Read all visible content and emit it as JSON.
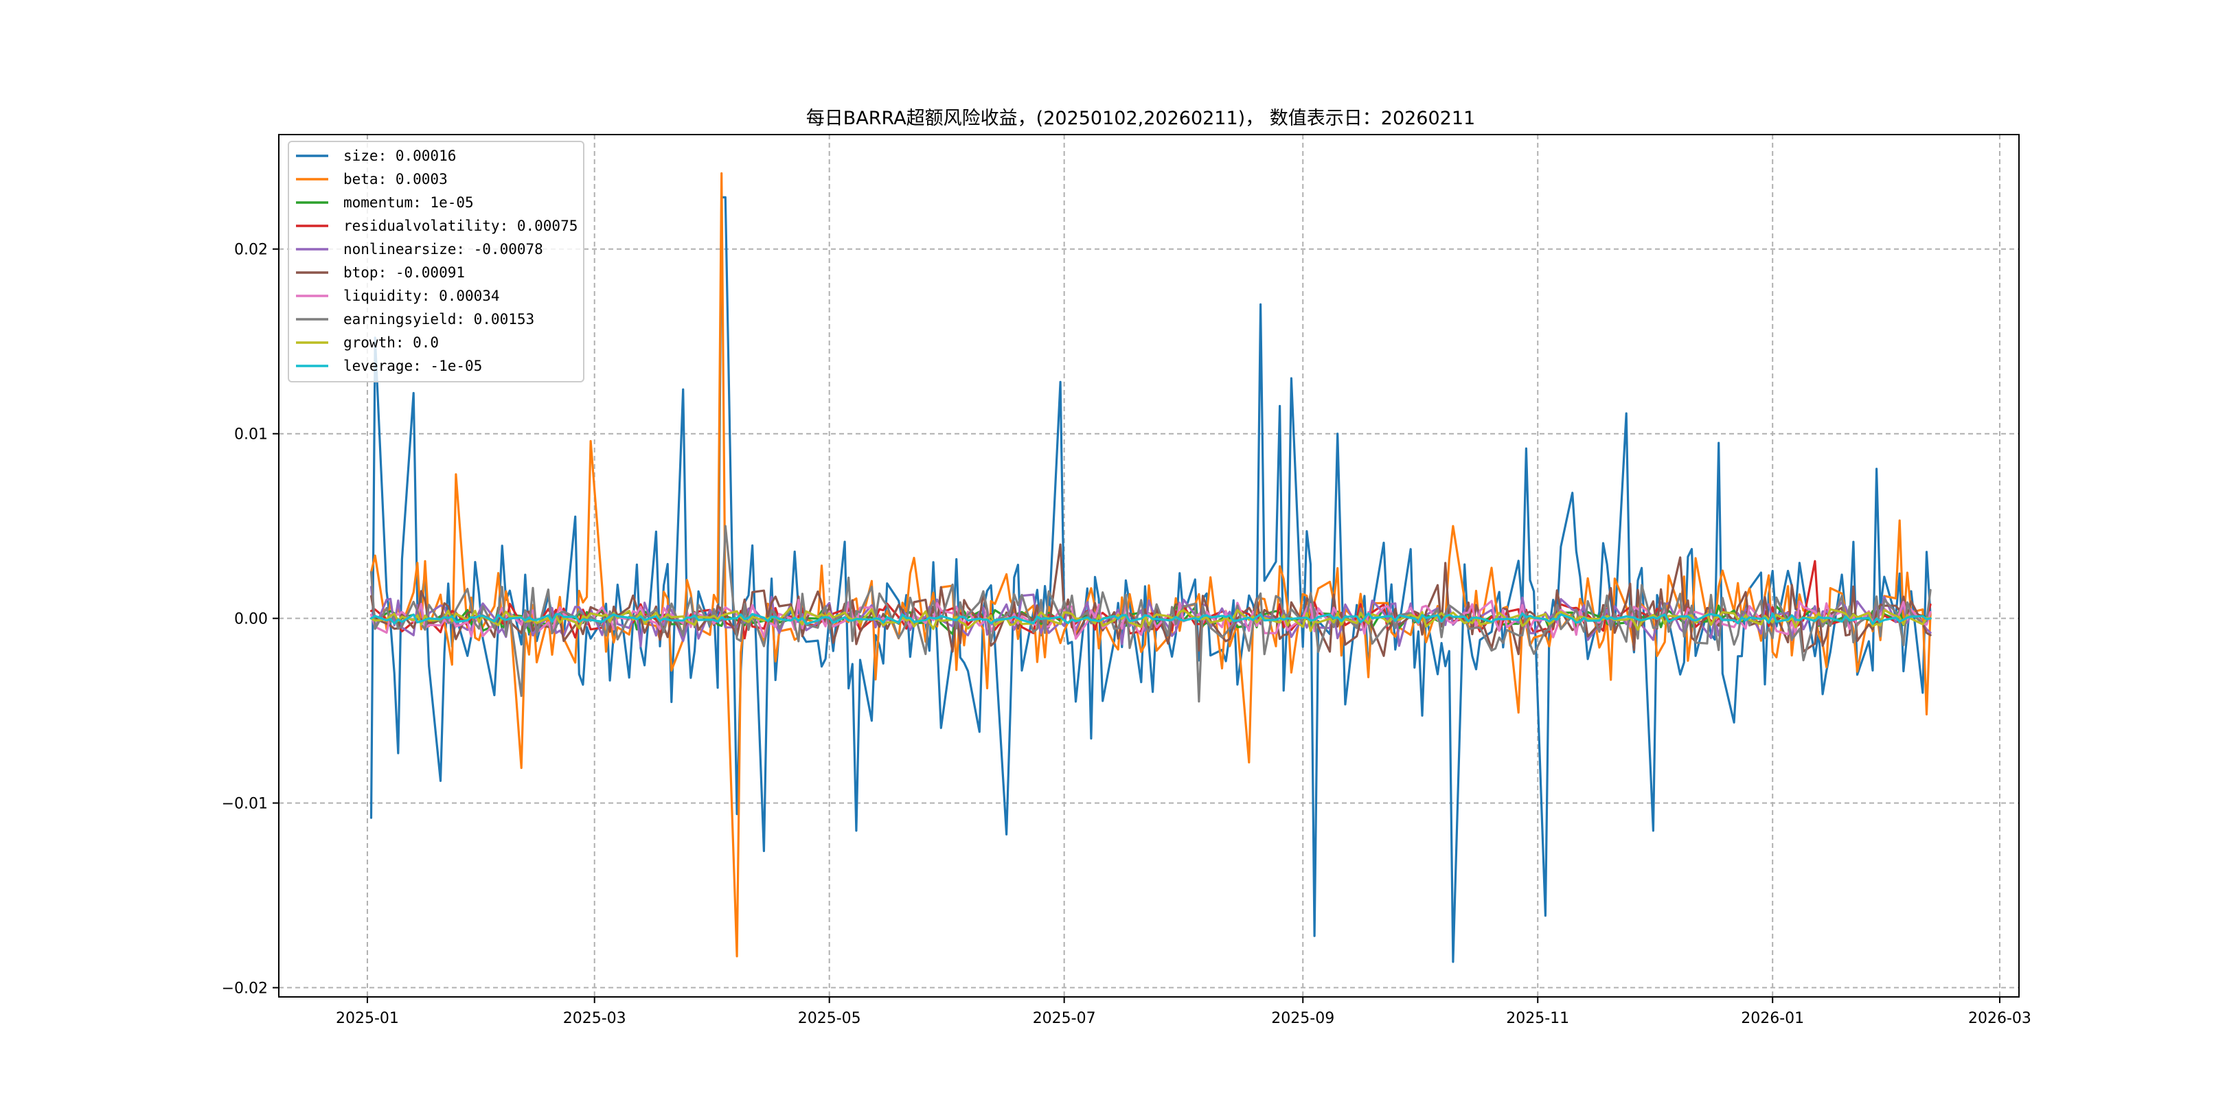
{
  "chart_data": {
    "type": "line",
    "title": "每日BARRA超额风险收益，(20250102,20260211)， 数值表示日：20260211",
    "xlabel": "",
    "ylabel": "",
    "x_start": "2025-01-02",
    "x_end": "2026-02-11",
    "xlim": [
      "2024-12-09",
      "2026-03-06"
    ],
    "ylim": [
      -0.0205,
      0.0262
    ],
    "x_ticks": [
      "2025-01",
      "2025-03",
      "2025-05",
      "2025-07",
      "2025-09",
      "2025-11",
      "2026-01",
      "2026-03"
    ],
    "y_ticks": [
      -0.02,
      -0.01,
      0.0,
      0.01,
      0.02
    ],
    "y_tick_labels": [
      "−0.02",
      "−0.01",
      "0.00",
      "0.01",
      "0.02"
    ],
    "grid": true,
    "legend_position": "top-left",
    "series": [
      {
        "name": "size",
        "legend": "size: 0.00016",
        "color": "#1f77b4",
        "amplitude": 0.0045,
        "seed": 11,
        "points": [
          [
            "2025-01-02",
            -0.0108
          ],
          [
            "2025-01-03",
            0.0152
          ],
          [
            "2025-01-09",
            -0.0073
          ],
          [
            "2025-01-13",
            0.0122
          ],
          [
            "2025-01-20",
            -0.0088
          ],
          [
            "2025-03-24",
            0.0124
          ],
          [
            "2025-04-03",
            0.0228
          ],
          [
            "2025-04-04",
            0.0228
          ],
          [
            "2025-04-07",
            -0.0106
          ],
          [
            "2025-04-14",
            -0.0126
          ],
          [
            "2025-05-08",
            -0.0115
          ],
          [
            "2025-06-16",
            -0.0117
          ],
          [
            "2025-06-30",
            0.0128
          ],
          [
            "2025-08-21",
            0.017
          ],
          [
            "2025-08-26",
            0.0115
          ],
          [
            "2025-08-29",
            0.013
          ],
          [
            "2025-09-04",
            -0.0172
          ],
          [
            "2025-09-10",
            0.01
          ],
          [
            "2025-10-10",
            -0.0186
          ],
          [
            "2025-10-29",
            0.0092
          ],
          [
            "2025-11-03",
            -0.0161
          ],
          [
            "2025-11-10",
            0.0068
          ],
          [
            "2025-11-24",
            0.0111
          ],
          [
            "2025-12-01",
            -0.0115
          ],
          [
            "2025-12-18",
            0.0095
          ],
          [
            "2026-01-28",
            0.0081
          ],
          [
            "2026-02-10",
            0.0036
          ],
          [
            "2026-02-11",
            0.00016
          ]
        ]
      },
      {
        "name": "beta",
        "legend": "beta: 0.0003",
        "color": "#ff7f0e",
        "amplitude": 0.0028,
        "seed": 23,
        "points": [
          [
            "2025-01-02",
            0.0025
          ],
          [
            "2025-01-03",
            0.0034
          ],
          [
            "2025-01-24",
            0.0078
          ],
          [
            "2025-02-10",
            -0.0081
          ],
          [
            "2025-02-28",
            0.0096
          ],
          [
            "2025-04-03",
            0.0241
          ],
          [
            "2025-04-07",
            -0.0183
          ],
          [
            "2025-08-18",
            -0.0078
          ],
          [
            "2025-10-10",
            0.005
          ],
          [
            "2025-10-27",
            -0.0051
          ],
          [
            "2026-02-03",
            0.0053
          ],
          [
            "2026-02-10",
            -0.0052
          ],
          [
            "2026-02-11",
            0.0003
          ]
        ]
      },
      {
        "name": "momentum",
        "legend": "momentum: 1e-05",
        "color": "#2ca02c",
        "amplitude": 0.0006,
        "seed": 37,
        "points": [
          [
            "2025-01-02",
            0.0
          ],
          [
            "2026-02-11",
            1e-05
          ]
        ]
      },
      {
        "name": "residualvolatility",
        "legend": "residualvolatility: 0.00075",
        "color": "#d62728",
        "amplitude": 0.0008,
        "seed": 41,
        "points": [
          [
            "2025-01-02",
            0.0004
          ],
          [
            "2026-01-12",
            0.0031
          ],
          [
            "2026-02-11",
            0.00075
          ]
        ]
      },
      {
        "name": "nonlinearsize",
        "legend": "nonlinearsize: -0.00078",
        "color": "#9467bd",
        "amplitude": 0.0011,
        "seed": 53,
        "points": [
          [
            "2025-01-02",
            0.0017
          ],
          [
            "2026-02-11",
            -0.00078
          ]
        ]
      },
      {
        "name": "btop",
        "legend": "btop: -0.00091",
        "color": "#8c564b",
        "amplitude": 0.0016,
        "seed": 67,
        "points": [
          [
            "2025-01-02",
            0.0012
          ],
          [
            "2025-06-30",
            0.004
          ],
          [
            "2025-10-08",
            0.003
          ],
          [
            "2025-12-08",
            0.0033
          ],
          [
            "2026-02-11",
            -0.00091
          ]
        ]
      },
      {
        "name": "liquidity",
        "legend": "liquidity: 0.00034",
        "color": "#e377c2",
        "amplitude": 0.0009,
        "seed": 79,
        "points": [
          [
            "2025-01-02",
            0.0002
          ],
          [
            "2026-02-11",
            0.00034
          ]
        ]
      },
      {
        "name": "earningsyield",
        "legend": "earningsyield: 0.00153",
        "color": "#7f7f7f",
        "amplitude": 0.0017,
        "seed": 83,
        "points": [
          [
            "2025-01-02",
            0.0025
          ],
          [
            "2025-02-10",
            -0.0042
          ],
          [
            "2025-04-04",
            0.005
          ],
          [
            "2025-08-05",
            -0.0045
          ],
          [
            "2026-02-11",
            0.00153
          ]
        ]
      },
      {
        "name": "growth",
        "legend": "growth: 0.0",
        "color": "#bcbd22",
        "amplitude": 0.00045,
        "seed": 97,
        "points": [
          [
            "2025-01-02",
            0.0
          ],
          [
            "2026-02-11",
            0.0
          ]
        ]
      },
      {
        "name": "leverage",
        "legend": "leverage: -1e-05",
        "color": "#17becf",
        "amplitude": 0.00025,
        "seed": 101,
        "points": [
          [
            "2025-01-02",
            0.0
          ],
          [
            "2026-02-11",
            -1e-05
          ]
        ]
      }
    ]
  }
}
